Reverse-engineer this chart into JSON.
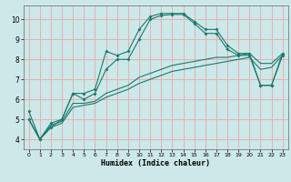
{
  "xlabel": "Humidex (Indice chaleur)",
  "bg_color": "#cce8e8",
  "grid_color": "#e8b0b0",
  "line_color": "#1a7a6e",
  "xlim": [
    -0.5,
    23.5
  ],
  "ylim": [
    3.5,
    10.7
  ],
  "xticks": [
    0,
    1,
    2,
    3,
    4,
    5,
    6,
    7,
    8,
    9,
    10,
    11,
    12,
    13,
    14,
    15,
    16,
    17,
    18,
    19,
    20,
    21,
    22,
    23
  ],
  "yticks": [
    4,
    5,
    6,
    7,
    8,
    9,
    10
  ],
  "line1_x": [
    0,
    1,
    2,
    3,
    4,
    5,
    6,
    7,
    8,
    9,
    10,
    11,
    12,
    13,
    14,
    15,
    16,
    17,
    18,
    19,
    20,
    21,
    22,
    23
  ],
  "line1_y": [
    5.4,
    4.0,
    4.6,
    5.0,
    6.3,
    6.3,
    6.5,
    8.4,
    8.2,
    8.4,
    9.5,
    10.15,
    10.3,
    10.3,
    10.3,
    9.9,
    9.5,
    9.5,
    8.7,
    8.3,
    8.3,
    6.7,
    6.7,
    8.3
  ],
  "line2_x": [
    0,
    1,
    2,
    3,
    4,
    5,
    6,
    7,
    8,
    9,
    10,
    11,
    12,
    13,
    14,
    15,
    16,
    17,
    18,
    19,
    20,
    21,
    22,
    23
  ],
  "line2_y": [
    5.0,
    4.0,
    4.8,
    5.0,
    6.3,
    6.0,
    6.3,
    7.5,
    8.0,
    8.0,
    9.0,
    10.0,
    10.2,
    10.25,
    10.25,
    9.8,
    9.3,
    9.3,
    8.5,
    8.2,
    8.2,
    6.7,
    6.7,
    8.2
  ],
  "line3_x": [
    0,
    1,
    2,
    3,
    4,
    5,
    6,
    7,
    8,
    9,
    10,
    11,
    12,
    13,
    14,
    15,
    16,
    17,
    18,
    19,
    20,
    21,
    22,
    23
  ],
  "line3_y": [
    5.0,
    4.0,
    4.7,
    4.9,
    5.8,
    5.8,
    5.9,
    6.3,
    6.5,
    6.7,
    7.1,
    7.3,
    7.5,
    7.7,
    7.8,
    7.9,
    8.0,
    8.1,
    8.1,
    8.2,
    8.3,
    7.8,
    7.8,
    8.3
  ],
  "line4_x": [
    0,
    1,
    2,
    3,
    4,
    5,
    6,
    7,
    8,
    9,
    10,
    11,
    12,
    13,
    14,
    15,
    16,
    17,
    18,
    19,
    20,
    21,
    22,
    23
  ],
  "line4_y": [
    5.0,
    4.0,
    4.6,
    4.8,
    5.6,
    5.7,
    5.8,
    6.1,
    6.3,
    6.5,
    6.8,
    7.0,
    7.2,
    7.4,
    7.5,
    7.6,
    7.7,
    7.8,
    7.9,
    8.0,
    8.1,
    7.5,
    7.6,
    8.2
  ]
}
